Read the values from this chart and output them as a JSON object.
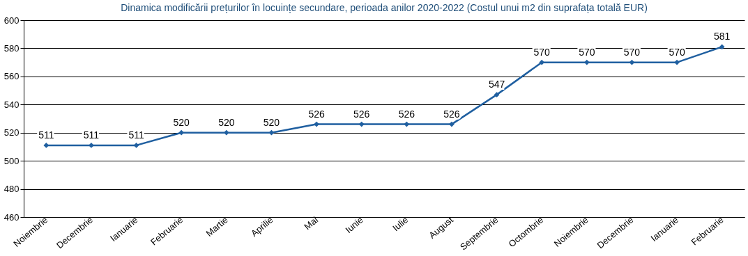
{
  "chart_data": {
    "type": "line",
    "title": "Dinamica modificării prețurilor în locuințe secundare, perioada anilor 2020-2022 (Costul unui m2 din suprafața totală EUR)",
    "categories": [
      "Noiembrie",
      "Decembrie",
      "Ianuarie",
      "Februarie",
      "Martie",
      "Aprilie",
      "Mai",
      "Iunie",
      "Iulie",
      "August",
      "Septembrie",
      "Octombrie",
      "Noiembrie",
      "Decembrie",
      "Ianuarie",
      "Februarie"
    ],
    "series": [
      {
        "color": "#1f5fa0",
        "values": [
          511,
          511,
          511,
          520,
          520,
          520,
          526,
          526,
          526,
          526,
          547,
          570,
          570,
          570,
          570,
          581
        ]
      }
    ],
    "ylim": [
      460,
      600
    ],
    "yticks": [
      460,
      480,
      500,
      520,
      540,
      560,
      580,
      600
    ],
    "grid": "y",
    "marker": "diamond",
    "data_labels": true
  }
}
